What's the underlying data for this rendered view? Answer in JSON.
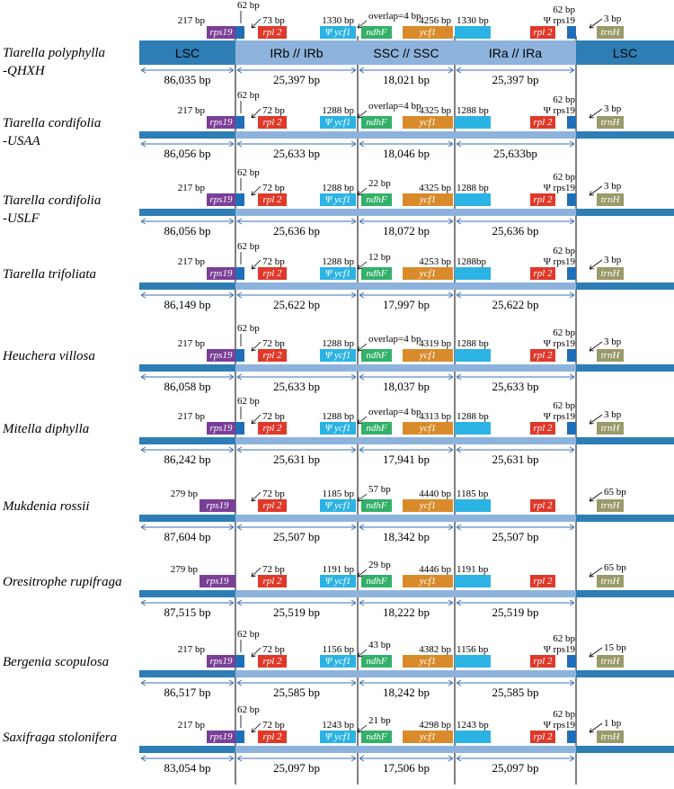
{
  "colors": {
    "lsc": "#2e7db5",
    "ir": "#8db3dc",
    "ssc": "#8db3dc",
    "thin_bar": "#2e7db5",
    "rps19": "#7a3f97",
    "rpl2": "#e0392a",
    "ycf1_ir": "#2bb3e3",
    "ndhF": "#33b06a",
    "ycf1": "#d98b2b",
    "trnH": "#9a9a6a",
    "ira_block": "#2bb3e3",
    "junction": "#1f6fb8"
  },
  "region_labels": {
    "lsc": "LSC",
    "irb": "IRb  //  IRb",
    "ssc": "SSC  //  SSC",
    "ira": "IRa  //  IRa",
    "lsc_right": "LSC"
  },
  "gene_names": {
    "rps19": "rps19",
    "rpl2": "rpl 2",
    "ycf1_pseudo": "Ψ ycf1",
    "ndhF": "ndhF",
    "ycf1": "ycf1",
    "trnH": "trnH",
    "rps19_pseudo": "Ψ rps19"
  },
  "species": [
    {
      "name_line1": "Tiarella polyphylla",
      "name_line2": "-QHXH",
      "rps19": "217 bp",
      "jlb_note": "62 bp",
      "rpl2_note": "73 bp",
      "ycf1_ir": "1330 bp",
      "ndhF_note": "overlap=4 bp",
      "ycf1_len": "4256 bp",
      "ira_len": "1330 bp",
      "jla_note": "62 bp",
      "trnH_note": "3 bp",
      "lsc": "86,035 bp",
      "irb": "25,397 bp",
      "ssc": "18,021 bp",
      "ira": "25,397 bp"
    },
    {
      "name_line1": "Tiarella cordifolia",
      "name_line2": "-USAA",
      "rps19": "217 bp",
      "jlb_note": "62 bp",
      "rpl2_note": "72 bp",
      "ycf1_ir": "1288 bp",
      "ndhF_note": "overlap=4 bp",
      "ycf1_len": "4325 bp",
      "ira_len": "1288 bp",
      "jla_note": "62 bp",
      "trnH_note": "3 bp",
      "lsc": "86,056 bp",
      "irb": "25,633 bp",
      "ssc": "18,046 bp",
      "ira": "25,633bp"
    },
    {
      "name_line1": "Tiarella cordifolia",
      "name_line2": "-USLF",
      "rps19": "217 bp",
      "jlb_note": "62 bp",
      "rpl2_note": "72 bp",
      "ycf1_ir": "1288 bp",
      "ndhF_note": "22 bp",
      "ycf1_len": "4325 bp",
      "ira_len": "1288 bp",
      "jla_note": "62 bp",
      "trnH_note": "3 bp",
      "lsc": "86,056 bp",
      "irb": "25,636 bp",
      "ssc": "18,072 bp",
      "ira": "25,636 bp"
    },
    {
      "name_line1": "Tiarella trifoliata",
      "name_line2": "",
      "rps19": "217 bp",
      "jlb_note": "62 bp",
      "rpl2_note": "72 bp",
      "ycf1_ir": "1288 bp",
      "ndhF_note": "12 bp",
      "ycf1_len": "4253 bp",
      "ira_len": "1288bp",
      "jla_note": "62 bp",
      "trnH_note": "3 bp",
      "lsc": "86,149 bp",
      "irb": "25,622 bp",
      "ssc": "17,997 bp",
      "ira": "25,622 bp"
    },
    {
      "name_line1": "Heuchera villosa",
      "name_line2": "",
      "rps19": "217 bp",
      "jlb_note": "62 bp",
      "rpl2_note": "72 bp",
      "ycf1_ir": "1288 bp",
      "ndhF_note": "overlap=4 bp",
      "ycf1_len": "4319 bp",
      "ira_len": "1288 bp",
      "jla_note": "62 bp",
      "trnH_note": "3 bp",
      "lsc": "86,058 bp",
      "irb": "25,633 bp",
      "ssc": "18,037 bp",
      "ira": "25,633 bp"
    },
    {
      "name_line1": "Mitella diphylla",
      "name_line2": "",
      "rps19": "217 bp",
      "jlb_note": "62 bp",
      "rpl2_note": "72 bp",
      "ycf1_ir": "1288 bp",
      "ndhF_note": "overlap=4 bp",
      "ycf1_len": "4313 bp",
      "ira_len": "1288 bp",
      "jla_note": "62 bp",
      "trnH_note": "3 bp",
      "lsc": "86,242 bp",
      "irb": "25,631 bp",
      "ssc": "17,941 bp",
      "ira": "25,631 bp"
    },
    {
      "name_line1": "Mukdenia rossii",
      "name_line2": "",
      "rps19": "279 bp",
      "jlb_note": "",
      "rpl2_note": "72 bp",
      "ycf1_ir": "1185 bp",
      "ndhF_note": "57 bp",
      "ycf1_len": "4440 bp",
      "ira_len": "1185 bp",
      "jla_note": "",
      "trnH_note": "65 bp",
      "lsc": "87,604 bp",
      "irb": "25,507 bp",
      "ssc": "18,342 bp",
      "ira": "25,507 bp"
    },
    {
      "name_line1": "Oresitrophe rupifraga",
      "name_line2": "",
      "rps19": "279 bp",
      "jlb_note": "",
      "rpl2_note": "72 bp",
      "ycf1_ir": "1191 bp",
      "ndhF_note": "29 bp",
      "ycf1_len": "4446 bp",
      "ira_len": "1191 bp",
      "jla_note": "",
      "trnH_note": "65 bp",
      "lsc": "87,515 bp",
      "irb": "25,519 bp",
      "ssc": "18,222 bp",
      "ira": "25,519 bp"
    },
    {
      "name_line1": "Bergenia scopulosa",
      "name_line2": "",
      "rps19": "217 bp",
      "jlb_note": "62 bp",
      "rpl2_note": "72 bp",
      "ycf1_ir": "1156 bp",
      "ndhF_note": "43 bp",
      "ycf1_len": "4382 bp",
      "ira_len": "1156 bp",
      "jla_note": "62 bp",
      "trnH_note": "15 bp",
      "lsc": "86,517 bp",
      "irb": "25,585 bp",
      "ssc": "18,242 bp",
      "ira": "25,585 bp"
    },
    {
      "name_line1": "Saxifraga stolonifera",
      "name_line2": "",
      "rps19": "217 bp",
      "jlb_note": "62 bp",
      "rpl2_note": "72 bp",
      "ycf1_ir": "1243 bp",
      "ndhF_note": "21 bp",
      "ycf1_len": "4298 bp",
      "ira_len": "1243 bp",
      "jla_note": "62 bp",
      "trnH_note": "1 bp",
      "lsc": "83,054 bp",
      "irb": "25,097 bp",
      "ssc": "17,506 bp",
      "ira": "25,097 bp"
    }
  ]
}
